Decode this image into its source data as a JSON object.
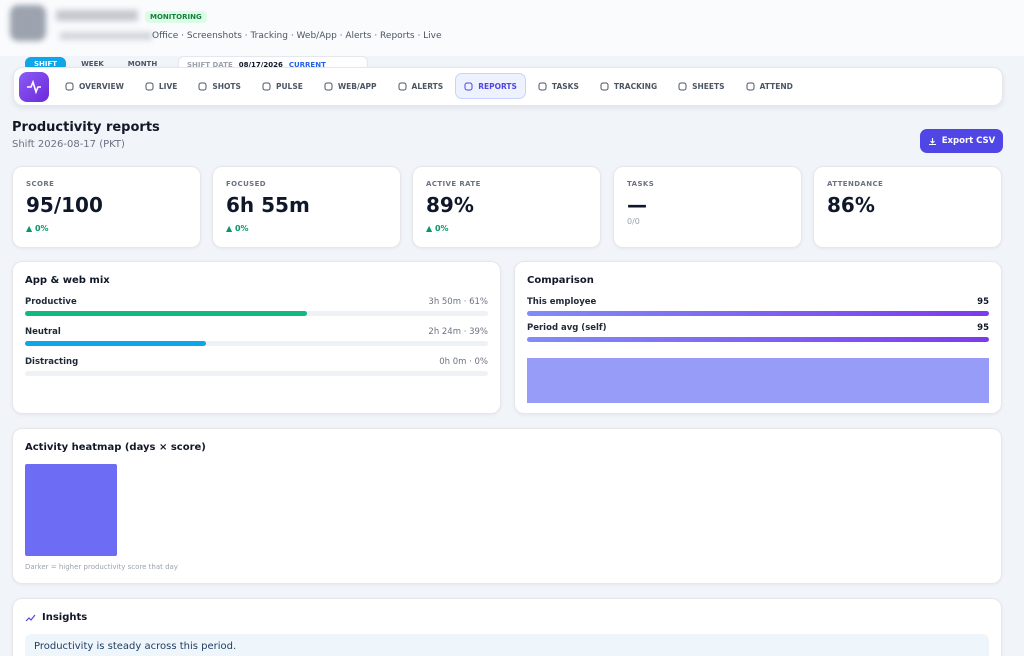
{
  "header": {
    "status": "MONITORING",
    "breadcrumb": "Office · Screenshots · Tracking · Web/App · Alerts · Reports · Live",
    "range_tabs": [
      "SHIFT",
      "WEEK",
      "MONTH"
    ],
    "date_label": "SHIFT DATE",
    "date": "08/17/2026",
    "date_badge": "CURRENT"
  },
  "nav": {
    "items": [
      "OVERVIEW",
      "LIVE",
      "SHOTS",
      "PULSE",
      "WEB/APP",
      "ALERTS",
      "REPORTS",
      "TASKS",
      "TRACKING",
      "SHEETS",
      "ATTEND"
    ],
    "active": 6
  },
  "page": {
    "title": "Productivity reports",
    "subtitle": "Shift 2026-08-17 (PKT)",
    "export_button": "Export CSV"
  },
  "stats": [
    {
      "label": "SCORE",
      "value": "95/100",
      "delta": "▲ 0%"
    },
    {
      "label": "FOCUSED",
      "value": "6h 55m",
      "delta": "▲ 0%"
    },
    {
      "label": "ACTIVE RATE",
      "value": "89%",
      "delta": "▲ 0%"
    },
    {
      "label": "TASKS",
      "value": "—",
      "note": "0/0"
    },
    {
      "label": "ATTENDANCE",
      "value": "86%"
    }
  ],
  "mix": {
    "title": "App & web mix",
    "rows": [
      {
        "label": "Productive",
        "detail": "3h 50m · 61%",
        "percent": 61,
        "color": "#10b981"
      },
      {
        "label": "Neutral",
        "detail": "2h 24m · 39%",
        "percent": 39,
        "color": "#0ea5e9"
      },
      {
        "label": "Distracting",
        "detail": "0h 0m · 0%",
        "percent": 0,
        "color": "#ef4444"
      }
    ]
  },
  "comparison": {
    "title": "Comparison",
    "rows": [
      {
        "label": "This employee",
        "value": 95
      },
      {
        "label": "Period avg (self)",
        "value": 95
      }
    ]
  },
  "heatmap": {
    "title": "Activity heatmap (days × score)",
    "caption": "Darker = higher productivity score that day"
  },
  "insights": {
    "title": "Insights",
    "text": "Productivity is steady across this period."
  }
}
